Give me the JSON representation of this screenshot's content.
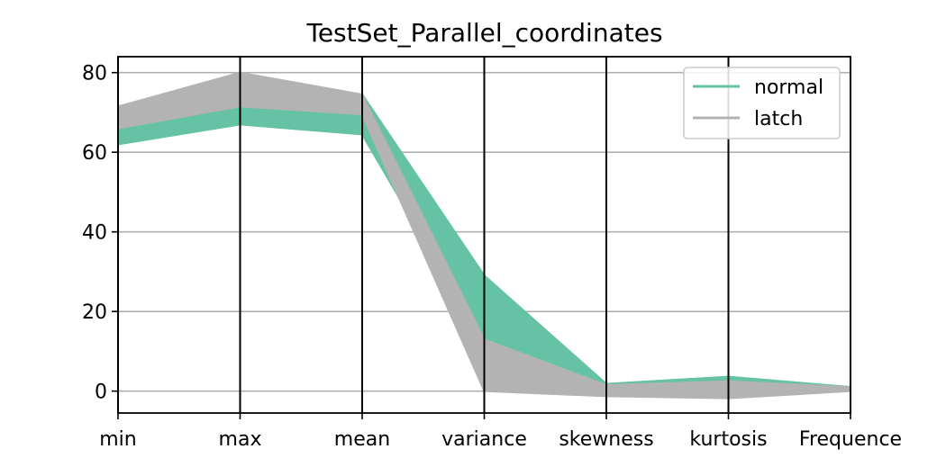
{
  "chart_data": {
    "type": "parallel_coordinates",
    "title": "TestSet_Parallel_coordinates",
    "axes": [
      "min",
      "max",
      "mean",
      "variance",
      "skewness",
      "kurtosis",
      "Frequence"
    ],
    "ylim": [
      -5.5,
      84
    ],
    "yticks": [
      0,
      20,
      40,
      60,
      80
    ],
    "grid": "horizontal",
    "legend_position": "top-right",
    "series": [
      {
        "name": "normal",
        "color": "#66c2a5",
        "band_low": [
          62,
          67,
          64.5,
          12,
          1,
          1.5,
          0.5
        ],
        "band_high": [
          71.5,
          78,
          74.5,
          29,
          1.8,
          3.6,
          1
        ],
        "lines": [
          [
            62,
            67,
            64.5,
            12,
            1.2,
            2.0,
            0.7
          ],
          [
            64,
            69,
            66.5,
            14,
            1.3,
            2.4,
            0.8
          ],
          [
            66,
            70.5,
            68,
            16,
            1.4,
            2.8,
            0.8
          ],
          [
            67,
            71.5,
            69.5,
            19,
            1.5,
            3.0,
            0.9
          ],
          [
            68,
            73,
            70.5,
            21,
            1.5,
            3.2,
            0.9
          ],
          [
            69,
            74,
            71.5,
            24,
            1.6,
            3.3,
            0.9
          ],
          [
            70.5,
            76,
            73,
            26,
            1.7,
            3.5,
            1.0
          ],
          [
            71.5,
            78,
            74.5,
            29,
            1.8,
            3.6,
            1.0
          ]
        ]
      },
      {
        "name": "latch",
        "color": "#b3b3b3",
        "band_low": [
          66,
          71.5,
          69.5,
          0,
          -1.3,
          -1.8,
          0
        ],
        "band_high": [
          71.5,
          80,
          74.5,
          13,
          1.5,
          2.5,
          1
        ]
      }
    ]
  }
}
